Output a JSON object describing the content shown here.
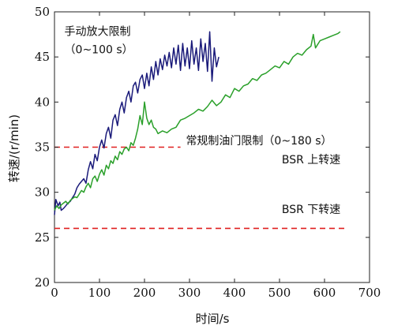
{
  "chart_data": {
    "type": "line",
    "title": "",
    "xlabel": "时间/s",
    "ylabel": "转速/(r/min)",
    "xlim": [
      0,
      700
    ],
    "ylim": [
      20,
      50
    ],
    "xticks": [
      "0",
      "100",
      "200",
      "300",
      "400",
      "500",
      "600",
      "700"
    ],
    "yticks": [
      "20",
      "25",
      "30",
      "35",
      "40",
      "45",
      "50"
    ],
    "grid": false,
    "legend": "none",
    "series": [
      {
        "name": "",
        "color": "#1a1a7a",
        "x": [
          0,
          3,
          8,
          12,
          15,
          20,
          25,
          30,
          35,
          40,
          45,
          50,
          55,
          60,
          65,
          70,
          75,
          80,
          85,
          90,
          95,
          100,
          105,
          110,
          115,
          120,
          125,
          130,
          135,
          140,
          145,
          150,
          155,
          160,
          165,
          170,
          175,
          180,
          185,
          190,
          195,
          200,
          205,
          210,
          215,
          220,
          225,
          230,
          235,
          240,
          245,
          250,
          255,
          260,
          265,
          270,
          275,
          280,
          285,
          290,
          295,
          300,
          305,
          310,
          315,
          320,
          325,
          330,
          335,
          340,
          345,
          350,
          355,
          360,
          365
        ],
        "y": [
          27.5,
          29.2,
          28.5,
          28.9,
          28.0,
          28.2,
          28.5,
          28.8,
          29.0,
          29.4,
          29.8,
          30.5,
          30.9,
          31.2,
          31.5,
          31.0,
          32.5,
          33.4,
          32.6,
          34.2,
          33.5,
          35.0,
          35.8,
          34.9,
          36.5,
          37.2,
          36.0,
          38.0,
          38.6,
          37.4,
          39.2,
          40.0,
          38.8,
          40.5,
          41.2,
          40.0,
          41.8,
          42.2,
          41.0,
          42.5,
          43.0,
          41.5,
          43.2,
          41.8,
          43.9,
          42.5,
          44.5,
          43.0,
          44.8,
          43.6,
          45.2,
          44.0,
          45.5,
          43.8,
          46.0,
          44.2,
          46.3,
          43.5,
          46.5,
          44.0,
          46.0,
          43.7,
          46.8,
          44.2,
          46.0,
          43.5,
          47.0,
          44.5,
          46.5,
          43.4,
          47.8,
          42.3,
          46.0,
          43.9,
          45.0
        ]
      },
      {
        "name": "",
        "color": "#2aa02a",
        "x": [
          0,
          5,
          10,
          15,
          20,
          25,
          30,
          35,
          40,
          45,
          50,
          55,
          60,
          65,
          70,
          75,
          80,
          85,
          90,
          95,
          100,
          105,
          110,
          115,
          120,
          125,
          130,
          135,
          140,
          145,
          150,
          155,
          160,
          165,
          170,
          175,
          180,
          185,
          190,
          195,
          200,
          205,
          210,
          215,
          220,
          225,
          230,
          240,
          250,
          260,
          270,
          280,
          290,
          300,
          310,
          320,
          330,
          340,
          350,
          360,
          370,
          380,
          390,
          400,
          410,
          420,
          430,
          440,
          450,
          460,
          470,
          480,
          490,
          500,
          510,
          520,
          530,
          540,
          550,
          560,
          570,
          575,
          580,
          590,
          600,
          610,
          620,
          630,
          635
        ],
        "y": [
          28.0,
          28.5,
          28.2,
          28.6,
          28.8,
          29.0,
          28.7,
          29.1,
          29.3,
          29.5,
          29.4,
          29.8,
          30.2,
          30.0,
          30.6,
          31.0,
          30.5,
          31.5,
          31.8,
          31.2,
          32.0,
          32.5,
          31.9,
          33.0,
          32.6,
          33.5,
          33.2,
          34.0,
          33.6,
          34.5,
          34.2,
          34.8,
          35.0,
          34.6,
          35.5,
          35.2,
          36.0,
          37.0,
          38.5,
          37.5,
          40.0,
          38.2,
          37.5,
          38.0,
          37.2,
          37.0,
          36.5,
          36.8,
          36.6,
          37.0,
          37.2,
          38.0,
          38.2,
          38.5,
          38.8,
          39.2,
          39.0,
          39.5,
          40.2,
          39.6,
          40.0,
          40.8,
          40.5,
          41.5,
          41.2,
          41.8,
          42.0,
          42.6,
          42.4,
          43.0,
          43.2,
          43.6,
          44.0,
          43.8,
          44.5,
          44.2,
          45.0,
          45.4,
          45.2,
          45.8,
          46.2,
          47.5,
          46.0,
          46.8,
          47.0,
          47.2,
          47.4,
          47.6,
          47.8
        ]
      }
    ],
    "reference_lines": [
      {
        "y": 35,
        "x_range": [
          0,
          280
        ],
        "color": "#e02020",
        "dashed": true
      },
      {
        "y": 26,
        "x_range": [
          0,
          650
        ],
        "color": "#e02020",
        "dashed": true
      }
    ],
    "annotations": [
      {
        "text": "手动放大限制",
        "x": 22,
        "y": 47.4
      },
      {
        "text": "（0~100 s）",
        "x": 22,
        "y": 45.4
      },
      {
        "text": "常规制油门限制（0~180 s）",
        "x": 292,
        "y": 35.3
      },
      {
        "text": "BSR  上转速",
        "x": 505,
        "y": 33.2
      },
      {
        "text": "BSR  下转速",
        "x": 505,
        "y": 27.7
      }
    ]
  }
}
